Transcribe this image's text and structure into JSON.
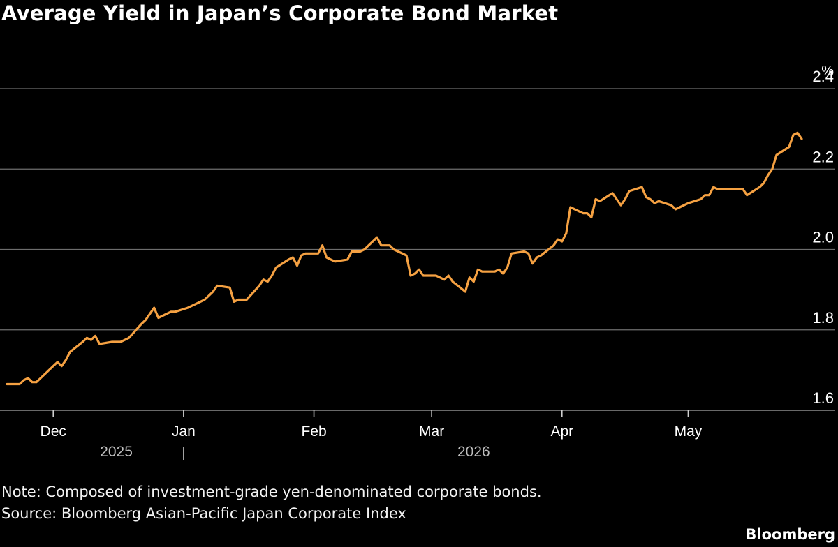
{
  "chart_data": {
    "type": "line",
    "title": "Average Yield in Japan’s Corporate Bond Market",
    "y_unit": "%",
    "ylim": [
      1.6,
      2.4
    ],
    "y_ticks": [
      "1.6",
      "1.8",
      "2.0",
      "2.2",
      "2.4"
    ],
    "grid": true,
    "x_ticks": [
      {
        "label": "Dec",
        "date": "2025-12-01"
      },
      {
        "label": "Jan",
        "date": "2026-01-01"
      },
      {
        "label": "Feb",
        "date": "2026-02-01"
      },
      {
        "label": "Mar",
        "date": "2026-03-01"
      },
      {
        "label": "Apr",
        "date": "2026-04-01"
      },
      {
        "label": "May",
        "date": "2026-05-01"
      }
    ],
    "year_labels": [
      {
        "label": "2025",
        "date": "2025-12-16"
      },
      {
        "label": "2026",
        "date": "2026-03-11"
      }
    ],
    "year_divider_date": "2026-01-01",
    "series": [
      {
        "color": "#f5a142",
        "points": [
          [
            "2025-11-20",
            1.665
          ],
          [
            "2025-11-23",
            1.665
          ],
          [
            "2025-11-24",
            1.675
          ],
          [
            "2025-11-25",
            1.68
          ],
          [
            "2025-11-26",
            1.67
          ],
          [
            "2025-11-27",
            1.67
          ],
          [
            "2025-11-28",
            1.68
          ],
          [
            "2025-12-01",
            1.71
          ],
          [
            "2025-12-02",
            1.72
          ],
          [
            "2025-12-03",
            1.71
          ],
          [
            "2025-12-04",
            1.725
          ],
          [
            "2025-12-05",
            1.745
          ],
          [
            "2025-12-08",
            1.77
          ],
          [
            "2025-12-09",
            1.78
          ],
          [
            "2025-12-10",
            1.775
          ],
          [
            "2025-12-11",
            1.785
          ],
          [
            "2025-12-12",
            1.765
          ],
          [
            "2025-12-15",
            1.77
          ],
          [
            "2025-12-16",
            1.77
          ],
          [
            "2025-12-17",
            1.77
          ],
          [
            "2025-12-18",
            1.775
          ],
          [
            "2025-12-19",
            1.78
          ],
          [
            "2025-12-22",
            1.815
          ],
          [
            "2025-12-23",
            1.825
          ],
          [
            "2025-12-24",
            1.84
          ],
          [
            "2025-12-25",
            1.855
          ],
          [
            "2025-12-26",
            1.83
          ],
          [
            "2025-12-29",
            1.845
          ],
          [
            "2025-12-30",
            1.845
          ],
          [
            "2026-01-02",
            1.855
          ],
          [
            "2026-01-05",
            1.87
          ],
          [
            "2026-01-06",
            1.875
          ],
          [
            "2026-01-07",
            1.885
          ],
          [
            "2026-01-08",
            1.895
          ],
          [
            "2026-01-09",
            1.91
          ],
          [
            "2026-01-12",
            1.905
          ],
          [
            "2026-01-13",
            1.87
          ],
          [
            "2026-01-14",
            1.875
          ],
          [
            "2026-01-15",
            1.875
          ],
          [
            "2026-01-16",
            1.875
          ],
          [
            "2026-01-19",
            1.91
          ],
          [
            "2026-01-20",
            1.925
          ],
          [
            "2026-01-21",
            1.92
          ],
          [
            "2026-01-22",
            1.935
          ],
          [
            "2026-01-23",
            1.955
          ],
          [
            "2026-01-26",
            1.975
          ],
          [
            "2026-01-27",
            1.98
          ],
          [
            "2026-01-28",
            1.96
          ],
          [
            "2026-01-29",
            1.985
          ],
          [
            "2026-01-30",
            1.99
          ],
          [
            "2026-02-02",
            1.99
          ],
          [
            "2026-02-03",
            2.01
          ],
          [
            "2026-02-04",
            1.98
          ],
          [
            "2026-02-05",
            1.975
          ],
          [
            "2026-02-06",
            1.97
          ],
          [
            "2026-02-09",
            1.975
          ],
          [
            "2026-02-10",
            1.995
          ],
          [
            "2026-02-11",
            1.995
          ],
          [
            "2026-02-12",
            1.995
          ],
          [
            "2026-02-13",
            2.0
          ],
          [
            "2026-02-16",
            2.03
          ],
          [
            "2026-02-17",
            2.01
          ],
          [
            "2026-02-18",
            2.01
          ],
          [
            "2026-02-19",
            2.01
          ],
          [
            "2026-02-20",
            2.0
          ],
          [
            "2026-02-23",
            1.985
          ],
          [
            "2026-02-24",
            1.935
          ],
          [
            "2026-02-25",
            1.94
          ],
          [
            "2026-02-26",
            1.95
          ],
          [
            "2026-02-27",
            1.935
          ],
          [
            "2026-03-02",
            1.935
          ],
          [
            "2026-03-03",
            1.93
          ],
          [
            "2026-03-04",
            1.925
          ],
          [
            "2026-03-05",
            1.935
          ],
          [
            "2026-03-06",
            1.92
          ],
          [
            "2026-03-09",
            1.895
          ],
          [
            "2026-03-10",
            1.93
          ],
          [
            "2026-03-11",
            1.92
          ],
          [
            "2026-03-12",
            1.95
          ],
          [
            "2026-03-13",
            1.945
          ],
          [
            "2026-03-16",
            1.945
          ],
          [
            "2026-03-17",
            1.95
          ],
          [
            "2026-03-18",
            1.94
          ],
          [
            "2026-03-19",
            1.955
          ],
          [
            "2026-03-20",
            1.99
          ],
          [
            "2026-03-23",
            1.995
          ],
          [
            "2026-03-24",
            1.99
          ],
          [
            "2026-03-25",
            1.965
          ],
          [
            "2026-03-26",
            1.98
          ],
          [
            "2026-03-27",
            1.985
          ],
          [
            "2026-03-30",
            2.01
          ],
          [
            "2026-03-31",
            2.025
          ],
          [
            "2026-04-01",
            2.02
          ],
          [
            "2026-04-02",
            2.04
          ],
          [
            "2026-04-03",
            2.105
          ],
          [
            "2026-04-06",
            2.09
          ],
          [
            "2026-04-07",
            2.09
          ],
          [
            "2026-04-08",
            2.08
          ],
          [
            "2026-04-09",
            2.125
          ],
          [
            "2026-04-10",
            2.12
          ],
          [
            "2026-04-13",
            2.14
          ],
          [
            "2026-04-14",
            2.125
          ],
          [
            "2026-04-15",
            2.11
          ],
          [
            "2026-04-16",
            2.125
          ],
          [
            "2026-04-17",
            2.145
          ],
          [
            "2026-04-20",
            2.155
          ],
          [
            "2026-04-21",
            2.13
          ],
          [
            "2026-04-22",
            2.125
          ],
          [
            "2026-04-23",
            2.115
          ],
          [
            "2026-04-24",
            2.12
          ],
          [
            "2026-04-27",
            2.11
          ],
          [
            "2026-04-28",
            2.1
          ],
          [
            "2026-04-29",
            2.105
          ],
          [
            "2026-04-30",
            2.11
          ],
          [
            "2026-05-01",
            2.115
          ],
          [
            "2026-05-04",
            2.125
          ],
          [
            "2026-05-05",
            2.135
          ],
          [
            "2026-05-06",
            2.135
          ],
          [
            "2026-05-07",
            2.155
          ],
          [
            "2026-05-08",
            2.15
          ],
          [
            "2026-05-11",
            2.15
          ],
          [
            "2026-05-12",
            2.15
          ],
          [
            "2026-05-13",
            2.15
          ],
          [
            "2026-05-14",
            2.15
          ],
          [
            "2026-05-15",
            2.135
          ],
          [
            "2026-05-18",
            2.155
          ],
          [
            "2026-05-19",
            2.165
          ],
          [
            "2026-05-20",
            2.185
          ],
          [
            "2026-05-21",
            2.2
          ],
          [
            "2026-05-22",
            2.235
          ],
          [
            "2026-05-25",
            2.255
          ],
          [
            "2026-05-26",
            2.285
          ],
          [
            "2026-05-27",
            2.29
          ],
          [
            "2026-05-28",
            2.275
          ]
        ]
      }
    ]
  },
  "notes": {
    "note": "Note: Composed of investment-grade yen-denominated corporate bonds.",
    "source": "Source: Bloomberg Asian-Pacific Japan Corporate Index"
  },
  "brand": "Bloomberg"
}
